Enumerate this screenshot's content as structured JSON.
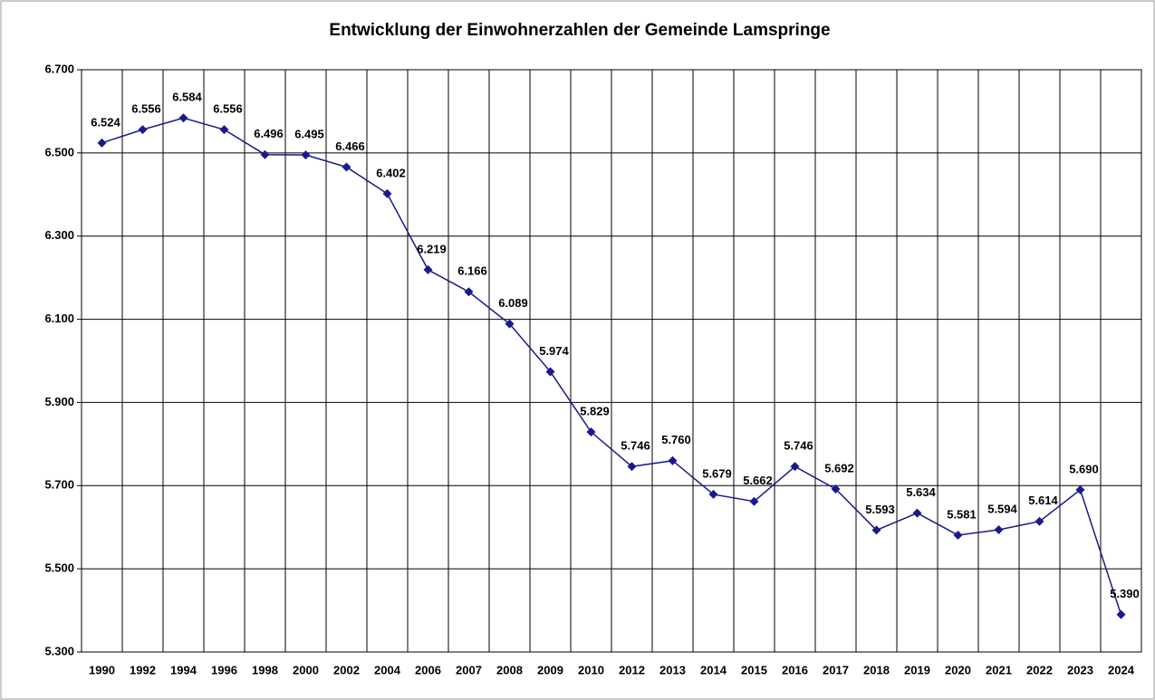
{
  "chart_data": {
    "type": "line",
    "title": "Entwicklung der Einwohnerzahlen der Gemeinde Lamspringe",
    "categories": [
      "1990",
      "1992",
      "1994",
      "1996",
      "1998",
      "2000",
      "2002",
      "2004",
      "2006",
      "2007",
      "2008",
      "2009",
      "2010",
      "2012",
      "2013",
      "2014",
      "2015",
      "2016",
      "2017",
      "2018",
      "2019",
      "2020",
      "2021",
      "2022",
      "2023",
      "2024"
    ],
    "values": [
      6524,
      6556,
      6584,
      6556,
      6496,
      6495,
      6466,
      6402,
      6219,
      6166,
      6089,
      5974,
      5829,
      5746,
      5760,
      5679,
      5662,
      5746,
      5692,
      5593,
      5634,
      5581,
      5594,
      5614,
      5690,
      5390
    ],
    "value_labels": [
      "6.524",
      "6.556",
      "6.584",
      "6.556",
      "6.496",
      "6.495",
      "6.466",
      "6.402",
      "6.219",
      "6.166",
      "6.089",
      "5.974",
      "5.829",
      "5.746",
      "5.760",
      "5.679",
      "5.662",
      "5.746",
      "5.692",
      "5.593",
      "5.634",
      "5.581",
      "5.594",
      "5.614",
      "5.690",
      "5.390"
    ],
    "color": "#1a1a8c",
    "ylim": [
      5300,
      6700
    ],
    "yticks": [
      {
        "value": 5300,
        "label": "5.300"
      },
      {
        "value": 5500,
        "label": "5.500"
      },
      {
        "value": 5700,
        "label": "5.700"
      },
      {
        "value": 5900,
        "label": "5.900"
      },
      {
        "value": 6100,
        "label": "6.100"
      },
      {
        "value": 6300,
        "label": "6.300"
      },
      {
        "value": 6500,
        "label": "6.500"
      },
      {
        "value": 6700,
        "label": "6.700"
      }
    ],
    "grid": true
  }
}
